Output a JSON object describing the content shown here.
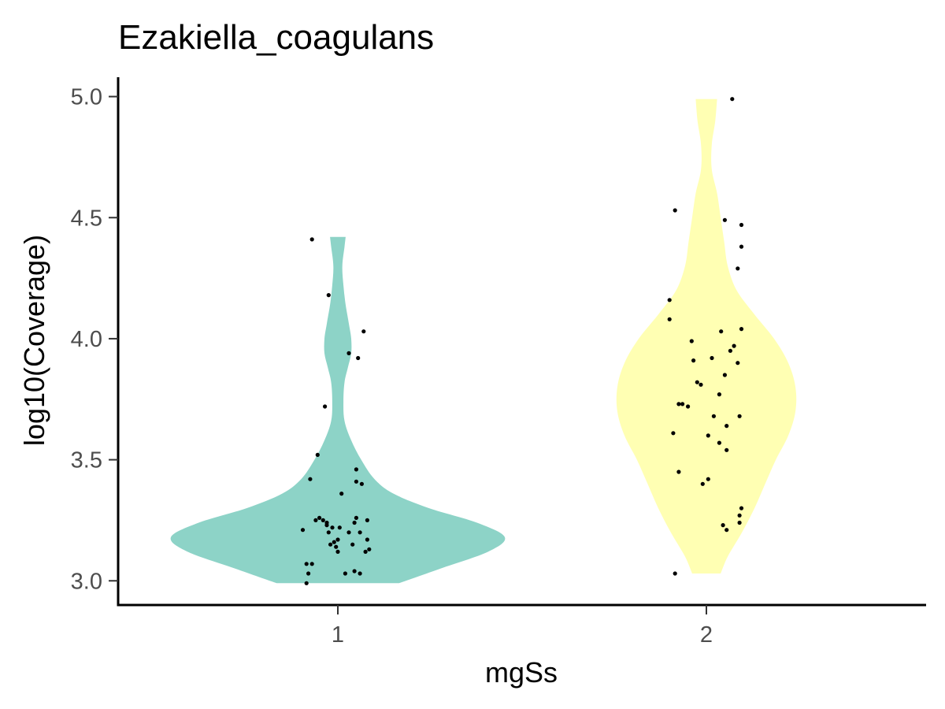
{
  "chart_data": {
    "type": "violin",
    "title": "Ezakiella_coagulans",
    "xlabel": "mgSs",
    "ylabel": "log10(Coverage)",
    "categories": [
      "1",
      "2"
    ],
    "ylim": [
      2.9,
      5.08
    ],
    "yticks": [
      "3.0",
      "3.5",
      "4.0",
      "4.5",
      "5.0"
    ],
    "grid": false,
    "legend": "none",
    "colors": {
      "1": "#8dd3c7",
      "2": "#ffffb3",
      "points": "#000000"
    },
    "violins": [
      {
        "category": "1",
        "range": [
          2.99,
          4.42
        ],
        "density_profile": [
          [
            2.99,
            0.55
          ],
          [
            3.05,
            0.92
          ],
          [
            3.12,
            1.35
          ],
          [
            3.18,
            1.5
          ],
          [
            3.24,
            1.25
          ],
          [
            3.3,
            0.82
          ],
          [
            3.36,
            0.5
          ],
          [
            3.42,
            0.33
          ],
          [
            3.5,
            0.21
          ],
          [
            3.58,
            0.12
          ],
          [
            3.66,
            0.06
          ],
          [
            3.74,
            0.05
          ],
          [
            3.82,
            0.06
          ],
          [
            3.88,
            0.09
          ],
          [
            3.94,
            0.12
          ],
          [
            4.0,
            0.12
          ],
          [
            4.06,
            0.1
          ],
          [
            4.14,
            0.07
          ],
          [
            4.22,
            0.05
          ],
          [
            4.3,
            0.04
          ],
          [
            4.38,
            0.06
          ],
          [
            4.42,
            0.07
          ]
        ]
      },
      {
        "category": "2",
        "range": [
          3.03,
          4.99
        ],
        "density_profile": [
          [
            3.03,
            0.08
          ],
          [
            3.1,
            0.12
          ],
          [
            3.2,
            0.2
          ],
          [
            3.3,
            0.27
          ],
          [
            3.4,
            0.33
          ],
          [
            3.5,
            0.39
          ],
          [
            3.6,
            0.46
          ],
          [
            3.7,
            0.5
          ],
          [
            3.8,
            0.5
          ],
          [
            3.9,
            0.46
          ],
          [
            4.0,
            0.38
          ],
          [
            4.1,
            0.27
          ],
          [
            4.2,
            0.17
          ],
          [
            4.3,
            0.12
          ],
          [
            4.4,
            0.1
          ],
          [
            4.5,
            0.08
          ],
          [
            4.6,
            0.06
          ],
          [
            4.7,
            0.03
          ],
          [
            4.8,
            0.03
          ],
          [
            4.9,
            0.05
          ],
          [
            4.99,
            0.06
          ]
        ]
      }
    ],
    "points": [
      {
        "group": "1",
        "jitter": -0.14,
        "y": 4.41
      },
      {
        "group": "1",
        "jitter": -0.05,
        "y": 4.18
      },
      {
        "group": "1",
        "jitter": 0.14,
        "y": 4.03
      },
      {
        "group": "1",
        "jitter": 0.06,
        "y": 3.94
      },
      {
        "group": "1",
        "jitter": 0.11,
        "y": 3.92
      },
      {
        "group": "1",
        "jitter": -0.07,
        "y": 3.72
      },
      {
        "group": "1",
        "jitter": -0.11,
        "y": 3.52
      },
      {
        "group": "1",
        "jitter": -0.15,
        "y": 3.42
      },
      {
        "group": "1",
        "jitter": 0.1,
        "y": 3.46
      },
      {
        "group": "1",
        "jitter": 0.1,
        "y": 3.41
      },
      {
        "group": "1",
        "jitter": 0.13,
        "y": 3.4
      },
      {
        "group": "1",
        "jitter": 0.02,
        "y": 3.36
      },
      {
        "group": "1",
        "jitter": -0.1,
        "y": 3.26
      },
      {
        "group": "1",
        "jitter": -0.12,
        "y": 3.25
      },
      {
        "group": "1",
        "jitter": -0.08,
        "y": 3.25
      },
      {
        "group": "1",
        "jitter": -0.06,
        "y": 3.24
      },
      {
        "group": "1",
        "jitter": -0.03,
        "y": 3.22
      },
      {
        "group": "1",
        "jitter": 0.01,
        "y": 3.22
      },
      {
        "group": "1",
        "jitter": 0.1,
        "y": 3.26
      },
      {
        "group": "1",
        "jitter": 0.09,
        "y": 3.24
      },
      {
        "group": "1",
        "jitter": 0.16,
        "y": 3.25
      },
      {
        "group": "1",
        "jitter": -0.19,
        "y": 3.21
      },
      {
        "group": "1",
        "jitter": -0.06,
        "y": 3.23
      },
      {
        "group": "1",
        "jitter": -0.05,
        "y": 3.2
      },
      {
        "group": "1",
        "jitter": 0.06,
        "y": 3.2
      },
      {
        "group": "1",
        "jitter": 0.12,
        "y": 3.2
      },
      {
        "group": "1",
        "jitter": -0.04,
        "y": 3.15
      },
      {
        "group": "1",
        "jitter": -0.02,
        "y": 3.16
      },
      {
        "group": "1",
        "jitter": -0.01,
        "y": 3.14
      },
      {
        "group": "1",
        "jitter": 0.0,
        "y": 3.17
      },
      {
        "group": "1",
        "jitter": 0.08,
        "y": 3.15
      },
      {
        "group": "1",
        "jitter": 0.16,
        "y": 3.17
      },
      {
        "group": "1",
        "jitter": 0.15,
        "y": 3.12
      },
      {
        "group": "1",
        "jitter": 0.17,
        "y": 3.13
      },
      {
        "group": "1",
        "jitter": 0.0,
        "y": 3.12
      },
      {
        "group": "1",
        "jitter": -0.17,
        "y": 3.07
      },
      {
        "group": "1",
        "jitter": -0.14,
        "y": 3.07
      },
      {
        "group": "1",
        "jitter": -0.16,
        "y": 3.03
      },
      {
        "group": "1",
        "jitter": 0.04,
        "y": 3.03
      },
      {
        "group": "1",
        "jitter": 0.09,
        "y": 3.04
      },
      {
        "group": "1",
        "jitter": 0.12,
        "y": 3.03
      },
      {
        "group": "1",
        "jitter": -0.17,
        "y": 2.99
      },
      {
        "group": "2",
        "jitter": 0.14,
        "y": 4.99
      },
      {
        "group": "2",
        "jitter": -0.17,
        "y": 4.53
      },
      {
        "group": "2",
        "jitter": 0.1,
        "y": 4.49
      },
      {
        "group": "2",
        "jitter": 0.19,
        "y": 4.47
      },
      {
        "group": "2",
        "jitter": 0.19,
        "y": 4.38
      },
      {
        "group": "2",
        "jitter": 0.17,
        "y": 4.29
      },
      {
        "group": "2",
        "jitter": -0.2,
        "y": 4.16
      },
      {
        "group": "2",
        "jitter": -0.2,
        "y": 4.08
      },
      {
        "group": "2",
        "jitter": 0.19,
        "y": 4.04
      },
      {
        "group": "2",
        "jitter": 0.08,
        "y": 4.03
      },
      {
        "group": "2",
        "jitter": -0.08,
        "y": 3.99
      },
      {
        "group": "2",
        "jitter": 0.15,
        "y": 3.97
      },
      {
        "group": "2",
        "jitter": 0.13,
        "y": 3.95
      },
      {
        "group": "2",
        "jitter": 0.03,
        "y": 3.92
      },
      {
        "group": "2",
        "jitter": -0.07,
        "y": 3.91
      },
      {
        "group": "2",
        "jitter": 0.17,
        "y": 3.9
      },
      {
        "group": "2",
        "jitter": 0.1,
        "y": 3.85
      },
      {
        "group": "2",
        "jitter": -0.05,
        "y": 3.82
      },
      {
        "group": "2",
        "jitter": -0.03,
        "y": 3.81
      },
      {
        "group": "2",
        "jitter": 0.07,
        "y": 3.77
      },
      {
        "group": "2",
        "jitter": -0.15,
        "y": 3.73
      },
      {
        "group": "2",
        "jitter": -0.13,
        "y": 3.73
      },
      {
        "group": "2",
        "jitter": -0.1,
        "y": 3.72
      },
      {
        "group": "2",
        "jitter": 0.04,
        "y": 3.68
      },
      {
        "group": "2",
        "jitter": 0.18,
        "y": 3.68
      },
      {
        "group": "2",
        "jitter": 0.11,
        "y": 3.64
      },
      {
        "group": "2",
        "jitter": -0.18,
        "y": 3.61
      },
      {
        "group": "2",
        "jitter": 0.01,
        "y": 3.6
      },
      {
        "group": "2",
        "jitter": 0.07,
        "y": 3.57
      },
      {
        "group": "2",
        "jitter": 0.11,
        "y": 3.54
      },
      {
        "group": "2",
        "jitter": -0.15,
        "y": 3.45
      },
      {
        "group": "2",
        "jitter": 0.01,
        "y": 3.42
      },
      {
        "group": "2",
        "jitter": -0.02,
        "y": 3.4
      },
      {
        "group": "2",
        "jitter": 0.19,
        "y": 3.3
      },
      {
        "group": "2",
        "jitter": 0.18,
        "y": 3.27
      },
      {
        "group": "2",
        "jitter": 0.18,
        "y": 3.24
      },
      {
        "group": "2",
        "jitter": 0.09,
        "y": 3.23
      },
      {
        "group": "2",
        "jitter": 0.11,
        "y": 3.21
      },
      {
        "group": "2",
        "jitter": -0.17,
        "y": 3.03
      }
    ]
  }
}
